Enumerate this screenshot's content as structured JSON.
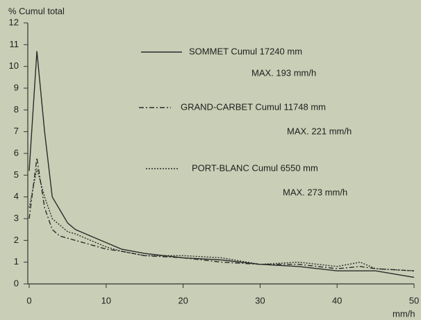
{
  "chart_data": {
    "type": "line",
    "y_axis_label": "% Cumul total",
    "x_axis_label": "mm/h",
    "x": [
      0,
      1,
      2,
      3,
      4,
      5,
      6,
      8,
      10,
      12,
      15,
      20,
      25,
      30,
      35,
      40,
      43,
      45,
      50
    ],
    "series": [
      {
        "name": "SOMMET Cumul 17240 mm",
        "note": "MAX. 193 mm/h",
        "color": "#2a2a2a",
        "style": "solid",
        "values": [
          5.2,
          10.7,
          7,
          4,
          3.4,
          2.8,
          2.5,
          2.2,
          1.9,
          1.6,
          1.4,
          1.2,
          1.1,
          0.9,
          0.8,
          0.6,
          0.6,
          0.6,
          0.3
        ]
      },
      {
        "name": "GRAND-CARBET Cumul 11748 mm",
        "note": "MAX. 221 mm/h",
        "color": "#2a2a2a",
        "style": "dashdot",
        "values": [
          3,
          5.8,
          3.5,
          2.5,
          2.2,
          2.1,
          2,
          1.8,
          1.6,
          1.5,
          1.3,
          1.2,
          1.0,
          0.9,
          0.9,
          0.7,
          0.8,
          0.7,
          0.6
        ]
      },
      {
        "name": "PORT-BLANC Cumul 6550 mm",
        "note": "MAX. 273 mm/h",
        "color": "#2a2a2a",
        "style": "dotted",
        "values": [
          3.5,
          5.3,
          4,
          3,
          2.7,
          2.4,
          2.3,
          2.0,
          1.7,
          1.5,
          1.3,
          1.3,
          1.2,
          0.9,
          1.0,
          0.8,
          1.0,
          0.7,
          0.6
        ]
      }
    ],
    "xlim": [
      0,
      50
    ],
    "xticks": [
      0,
      10,
      20,
      30,
      40,
      50
    ],
    "ylim": [
      0,
      12
    ],
    "yticks": [
      0,
      1,
      2,
      3,
      4,
      5,
      6,
      7,
      8,
      9,
      10,
      11,
      12
    ],
    "grid": false
  }
}
